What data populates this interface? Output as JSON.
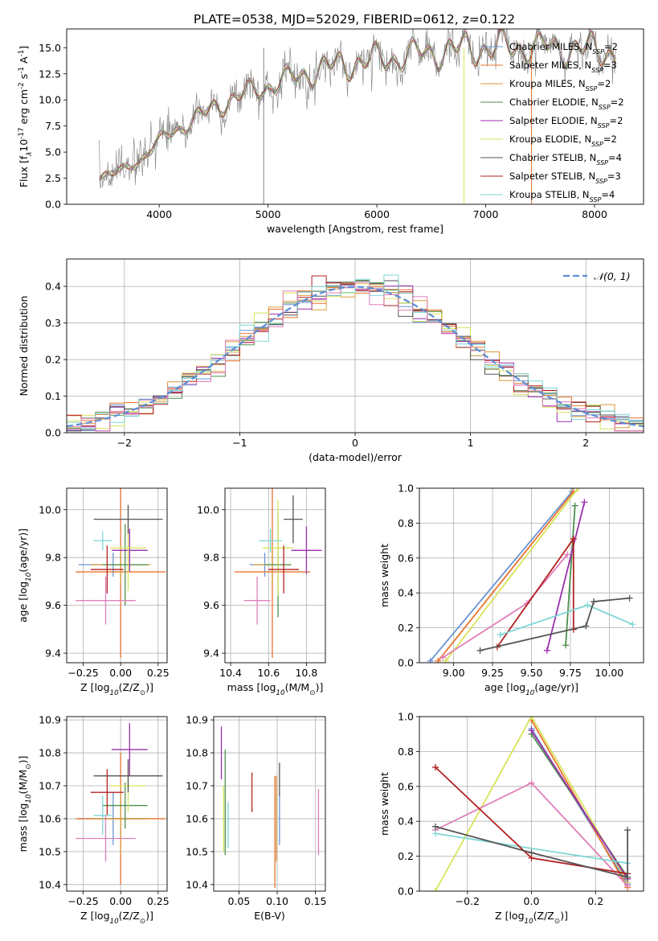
{
  "figure_title": "PLATE=0538, MJD=52029, FIBERID=0612, z=0.122",
  "model_colors": [
    "#6a93d4",
    "#e8742e",
    "#d99a3a",
    "#4f8f4f",
    "#9b2fae",
    "#d9e35a",
    "#555555",
    "#b22222",
    "#7fd6d6"
  ],
  "chart_data": [
    {
      "id": "spectrum",
      "type": "line",
      "title": "PLATE=0538, MJD=52029, FIBERID=0612, z=0.122",
      "xlabel": "wavelength [Angstrom, rest frame]",
      "ylabel": "Flux [f$_\\lambda$10$^{-17}$ erg cm$^{-2}$ s$^{-1}$ A$^{-1}$]",
      "xlim": [
        3150,
        8450
      ],
      "ylim": [
        0,
        16.8
      ],
      "xticks": [
        "4000",
        "5000",
        "6000",
        "7000",
        "8000"
      ],
      "yticks": [
        "0.0",
        "2.5",
        "5.0",
        "7.5",
        "10.0",
        "12.5",
        "15.0"
      ],
      "legend_position": "top-right",
      "legend": [
        {
          "label": "Chabrier MILES, N$_{SSP}$=2",
          "color": "#6a93d4"
        },
        {
          "label": "Salpeter MILES, N$_{SSP}$=3",
          "color": "#e8742e"
        },
        {
          "label": "Kroupa MILES, N$_{SSP}$=2",
          "color": "#d99a3a"
        },
        {
          "label": "Chabrier ELODIE, N$_{SSP}$=2",
          "color": "#4f8f4f"
        },
        {
          "label": "Salpeter ELODIE, N$_{SSP}$=2",
          "color": "#9b2fae"
        },
        {
          "label": "Kroupa ELODIE, N$_{SSP}$=2",
          "color": "#d9e35a"
        },
        {
          "label": "Chabrier STELIB, N$_{SSP}$=4",
          "color": "#555555"
        },
        {
          "label": "Salpeter STELIB, N$_{SSP}$=3",
          "color": "#b22222"
        },
        {
          "label": "Kroupa STELIB, N$_{SSP}$=4",
          "color": "#7fd6d6"
        }
      ],
      "data_color": "#808080",
      "continuum": [
        [
          3450,
          2.7
        ],
        [
          3600,
          3.0
        ],
        [
          3800,
          4.0
        ],
        [
          3950,
          5.5
        ],
        [
          4050,
          6.5
        ],
        [
          4300,
          8.0
        ],
        [
          4600,
          9.8
        ],
        [
          4900,
          11.0
        ],
        [
          5200,
          12.0
        ],
        [
          5500,
          13.0
        ],
        [
          5800,
          13.6
        ],
        [
          6100,
          14.0
        ],
        [
          6400,
          14.4
        ],
        [
          6700,
          14.8
        ],
        [
          7000,
          15.0
        ],
        [
          7400,
          15.1
        ],
        [
          7800,
          14.9
        ],
        [
          8200,
          14.6
        ]
      ]
    },
    {
      "id": "residuals",
      "type": "histogram",
      "xlabel": "(data-model)/error",
      "ylabel": "Normed distribution",
      "xlim": [
        -2.5,
        2.5
      ],
      "ylim": [
        0,
        0.475
      ],
      "xticks": [
        "−2",
        "−1",
        "0",
        "1",
        "2"
      ],
      "yticks": [
        "0.0",
        "0.1",
        "0.2",
        "0.3",
        "0.4"
      ],
      "legend": [
        {
          "label": "𝒩(0, 1)",
          "color": "#5b8fd6"
        }
      ],
      "legend_position": "upper right",
      "bins": 40,
      "grid": true
    },
    {
      "id": "age-vs-Z",
      "type": "errorbar",
      "xlabel": "Z [log$_{10}$(Z/Z$_\\odot$)]",
      "ylabel": "age  [log$_{10}$(age/yr)]",
      "xlim": [
        -0.36,
        0.31
      ],
      "ylim": [
        9.36,
        10.09
      ],
      "xticks": [
        "−0.25",
        "0.00",
        "0.25"
      ],
      "yticks": [
        "9.4",
        "9.6",
        "9.8",
        "10.0"
      ],
      "points": [
        {
          "x": -0.05,
          "y": 9.77,
          "xerr": 0.23,
          "yerr": 0.05,
          "color": "#6a93d4"
        },
        {
          "x": 0.0,
          "y": 9.74,
          "xerr": 0.3,
          "yerr": 0.36,
          "color": "#e8742e"
        },
        {
          "x": 0.0,
          "y": 9.77,
          "xerr": 0.2,
          "yerr": 0.08,
          "color": "#d99a3a"
        },
        {
          "x": 0.03,
          "y": 9.77,
          "xerr": 0.15,
          "yerr": 0.17,
          "color": "#4f8f4f"
        },
        {
          "x": 0.06,
          "y": 9.83,
          "xerr": 0.12,
          "yerr": 0.09,
          "color": "#9b2fae"
        },
        {
          "x": 0.05,
          "y": 9.84,
          "xerr": 0.12,
          "yerr": 0.18,
          "color": "#d9e35a"
        },
        {
          "x": 0.05,
          "y": 9.96,
          "xerr": 0.23,
          "yerr": 0.06,
          "color": "#555555"
        },
        {
          "x": -0.09,
          "y": 9.75,
          "xerr": 0.11,
          "yerr": 0.1,
          "color": "#b22222"
        },
        {
          "x": -0.12,
          "y": 9.87,
          "xerr": 0.06,
          "yerr": 0.04,
          "color": "#7fd6d6"
        },
        {
          "x": -0.1,
          "y": 9.62,
          "xerr": 0.2,
          "yerr": 0.1,
          "color": "#e07fb8"
        }
      ]
    },
    {
      "id": "age-vs-mass",
      "type": "errorbar",
      "xlabel": "mass [log$_{10}$(M/M$_\\odot$)]",
      "ylabel": "",
      "xlim": [
        10.37,
        10.9
      ],
      "ylim": [
        9.36,
        10.09
      ],
      "xticks": [
        "10.4",
        "10.6",
        "10.8"
      ],
      "yticks": [
        "9.4",
        "9.6",
        "9.8",
        "10.0"
      ],
      "points": [
        {
          "x": 10.58,
          "y": 9.77,
          "xerr": 0.08,
          "yerr": 0.05,
          "color": "#6a93d4"
        },
        {
          "x": 10.62,
          "y": 9.74,
          "xerr": 0.2,
          "yerr": 0.36,
          "color": "#e8742e"
        },
        {
          "x": 10.62,
          "y": 9.77,
          "xerr": 0.1,
          "yerr": 0.08,
          "color": "#d99a3a"
        },
        {
          "x": 10.65,
          "y": 9.77,
          "xerr": 0.07,
          "yerr": 0.22,
          "color": "#4f8f4f"
        },
        {
          "x": 10.8,
          "y": 9.83,
          "xerr": 0.08,
          "yerr": 0.1,
          "color": "#9b2fae"
        },
        {
          "x": 10.65,
          "y": 9.84,
          "xerr": 0.08,
          "yerr": 0.2,
          "color": "#d9e35a"
        },
        {
          "x": 10.73,
          "y": 9.96,
          "xerr": 0.05,
          "yerr": 0.1,
          "color": "#555555"
        },
        {
          "x": 10.68,
          "y": 9.75,
          "xerr": 0.08,
          "yerr": 0.1,
          "color": "#b22222"
        },
        {
          "x": 10.61,
          "y": 9.87,
          "xerr": 0.06,
          "yerr": 0.05,
          "color": "#7fd6d6"
        },
        {
          "x": 10.54,
          "y": 9.62,
          "xerr": 0.07,
          "yerr": 0.1,
          "color": "#e07fb8"
        }
      ]
    },
    {
      "id": "massweight-vs-age",
      "type": "line",
      "xlabel": "age  [log$_{10}$(age/yr)]",
      "ylabel": "mass weight",
      "xlim": [
        8.78,
        10.22
      ],
      "ylim": [
        0,
        1
      ],
      "xticks": [
        "9.00",
        "9.25",
        "9.50",
        "9.75",
        "10.00"
      ],
      "yticks": [
        "0.0",
        "0.2",
        "0.4",
        "0.6",
        "0.8",
        "1.0"
      ],
      "series": [
        {
          "color": "#6a93d4",
          "points": [
            [
              8.85,
              0.01
            ],
            [
              9.76,
              0.98
            ]
          ]
        },
        {
          "color": "#e8742e",
          "points": [
            [
              8.9,
              0.01
            ],
            [
              9.77,
              0.98
            ]
          ]
        },
        {
          "color": "#d9e35a",
          "points": [
            [
              8.95,
              0.01
            ],
            [
              9.8,
              1.0
            ]
          ]
        },
        {
          "color": "#e07fb8",
          "points": [
            [
              8.93,
              0.03
            ],
            [
              9.47,
              0.34
            ],
            [
              9.73,
              0.62
            ]
          ]
        },
        {
          "color": "#4f8f4f",
          "points": [
            [
              9.72,
              0.1
            ],
            [
              9.78,
              0.9
            ]
          ]
        },
        {
          "color": "#9b2fae",
          "points": [
            [
              9.6,
              0.07
            ],
            [
              9.84,
              0.92
            ]
          ]
        },
        {
          "color": "#b22222",
          "points": [
            [
              9.28,
              0.09
            ],
            [
              9.77,
              0.71
            ],
            [
              9.77,
              0.19
            ]
          ]
        },
        {
          "color": "#7fd6d6",
          "points": [
            [
              9.3,
              0.16
            ],
            [
              9.86,
              0.33
            ],
            [
              10.15,
              0.22
            ]
          ]
        },
        {
          "color": "#555555",
          "points": [
            [
              9.17,
              0.07
            ],
            [
              9.85,
              0.21
            ],
            [
              9.9,
              0.35
            ],
            [
              10.13,
              0.37
            ]
          ]
        }
      ]
    },
    {
      "id": "mass-vs-Z",
      "type": "errorbar",
      "xlabel": "Z [log$_{10}$(Z/Z$_\\odot$)]",
      "ylabel": "mass [log$_{10}$(M/M$_\\odot$)]",
      "xlim": [
        -0.36,
        0.31
      ],
      "ylim": [
        10.38,
        10.91
      ],
      "xticks": [
        "−0.25",
        "0.00",
        "0.25"
      ],
      "yticks": [
        "10.4",
        "10.5",
        "10.6",
        "10.7",
        "10.8",
        "10.9"
      ],
      "points": [
        {
          "x": -0.05,
          "y": 10.6,
          "xerr": 0.23,
          "yerr": 0.08,
          "color": "#6a93d4"
        },
        {
          "x": 0.0,
          "y": 10.6,
          "xerr": 0.3,
          "yerr": 0.2,
          "color": "#e8742e"
        },
        {
          "x": 0.0,
          "y": 10.6,
          "xerr": 0.2,
          "yerr": 0.1,
          "color": "#d99a3a"
        },
        {
          "x": 0.03,
          "y": 10.64,
          "xerr": 0.15,
          "yerr": 0.07,
          "color": "#4f8f4f"
        },
        {
          "x": 0.06,
          "y": 10.81,
          "xerr": 0.12,
          "yerr": 0.08,
          "color": "#9b2fae"
        },
        {
          "x": 0.05,
          "y": 10.7,
          "xerr": 0.12,
          "yerr": 0.08,
          "color": "#d9e35a"
        },
        {
          "x": 0.05,
          "y": 10.73,
          "xerr": 0.23,
          "yerr": 0.05,
          "color": "#555555"
        },
        {
          "x": -0.09,
          "y": 10.68,
          "xerr": 0.11,
          "yerr": 0.07,
          "color": "#b22222"
        },
        {
          "x": -0.12,
          "y": 10.61,
          "xerr": 0.06,
          "yerr": 0.06,
          "color": "#7fd6d6"
        },
        {
          "x": -0.1,
          "y": 10.54,
          "xerr": 0.2,
          "yerr": 0.07,
          "color": "#e07fb8"
        }
      ]
    },
    {
      "id": "mass-vs-ebv",
      "type": "errorbar",
      "xlabel": "E(B-V)",
      "ylabel": "",
      "xlim": [
        0.017,
        0.163
      ],
      "ylim": [
        10.38,
        10.91
      ],
      "xticks": [
        "0.05",
        "0.10",
        "0.15"
      ],
      "yticks": [
        "10.4",
        "10.5",
        "10.6",
        "10.7",
        "10.8",
        "10.9"
      ],
      "points": [
        {
          "x": 0.103,
          "y": 10.6,
          "xerr": 0,
          "yerr": 0.08,
          "color": "#6a93d4"
        },
        {
          "x": 0.097,
          "y": 10.56,
          "xerr": 0,
          "yerr": 0.17,
          "color": "#e8742e"
        },
        {
          "x": 0.099,
          "y": 10.6,
          "xerr": 0,
          "yerr": 0.13,
          "color": "#d99a3a"
        },
        {
          "x": 0.032,
          "y": 10.65,
          "xerr": 0,
          "yerr": 0.16,
          "color": "#4f8f4f"
        },
        {
          "x": 0.027,
          "y": 10.8,
          "xerr": 0,
          "yerr": 0.08,
          "color": "#9b2fae"
        },
        {
          "x": 0.03,
          "y": 10.6,
          "xerr": 0,
          "yerr": 0.1,
          "color": "#d9e35a"
        },
        {
          "x": 0.103,
          "y": 10.72,
          "xerr": 0,
          "yerr": 0.05,
          "color": "#555555"
        },
        {
          "x": 0.067,
          "y": 10.68,
          "xerr": 0,
          "yerr": 0.06,
          "color": "#b22222"
        },
        {
          "x": 0.036,
          "y": 10.58,
          "xerr": 0,
          "yerr": 0.07,
          "color": "#7fd6d6"
        },
        {
          "x": 0.154,
          "y": 10.59,
          "xerr": 0,
          "yerr": 0.1,
          "color": "#e07fb8"
        }
      ]
    },
    {
      "id": "massweight-vs-Z",
      "type": "line",
      "xlabel": "Z [log$_{10}$(Z/Z$_\\odot$)]",
      "ylabel": "mass weight",
      "xlim": [
        -0.35,
        0.35
      ],
      "ylim": [
        0,
        1
      ],
      "xticks": [
        "−0.2",
        "0.0",
        "0.2"
      ],
      "yticks": [
        "0.0",
        "0.2",
        "0.4",
        "0.6",
        "0.8",
        "1.0"
      ],
      "series": [
        {
          "color": "#6a93d4",
          "points": [
            [
              0.0,
              0.93
            ],
            [
              0.3,
              0.04
            ]
          ]
        },
        {
          "color": "#e8742e",
          "points": [
            [
              0.0,
              0.98
            ],
            [
              0.3,
              0.02
            ]
          ]
        },
        {
          "color": "#d9e35a",
          "points": [
            [
              -0.3,
              0.0
            ],
            [
              0.0,
              1.0
            ],
            [
              0.3,
              0.05
            ]
          ]
        },
        {
          "color": "#4f8f4f",
          "points": [
            [
              0.0,
              0.9
            ],
            [
              0.3,
              0.08
            ]
          ]
        },
        {
          "color": "#9b2fae",
          "points": [
            [
              0.0,
              0.92
            ],
            [
              0.3,
              0.07
            ]
          ]
        },
        {
          "color": "#e07fb8",
          "points": [
            [
              -0.3,
              0.35
            ],
            [
              0.0,
              0.62
            ],
            [
              0.3,
              0.03
            ]
          ]
        },
        {
          "color": "#7fd6d6",
          "points": [
            [
              -0.3,
              0.33
            ],
            [
              0.3,
              0.16
            ]
          ]
        },
        {
          "color": "#b22222",
          "points": [
            [
              -0.3,
              0.71
            ],
            [
              0.0,
              0.19
            ],
            [
              0.3,
              0.1
            ]
          ]
        },
        {
          "color": "#555555",
          "points": [
            [
              -0.3,
              0.37
            ],
            [
              0.0,
              0.22
            ],
            [
              0.3,
              0.08
            ],
            [
              0.3,
              0.35
            ]
          ]
        }
      ]
    }
  ]
}
